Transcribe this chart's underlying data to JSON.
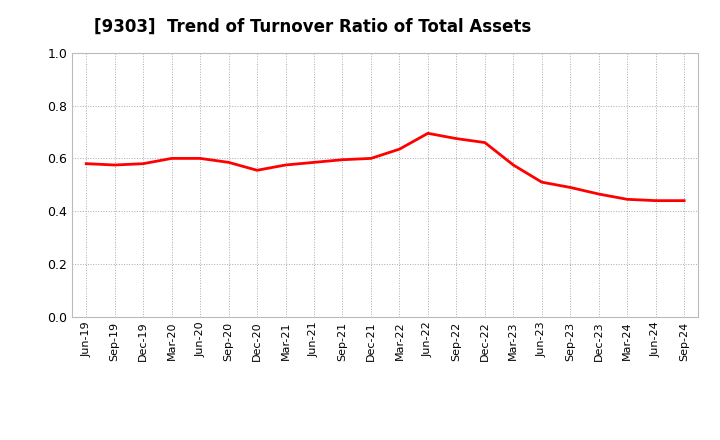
{
  "title": "[9303]  Trend of Turnover Ratio of Total Assets",
  "line_color": "#FF0000",
  "line_width": 2.0,
  "background_color": "#FFFFFF",
  "grid_color": "#AAAAAA",
  "ylim": [
    0.0,
    1.0
  ],
  "yticks": [
    0.0,
    0.2,
    0.4,
    0.6,
    0.8,
    1.0
  ],
  "x_labels": [
    "Jun-19",
    "Sep-19",
    "Dec-19",
    "Mar-20",
    "Jun-20",
    "Sep-20",
    "Dec-20",
    "Mar-21",
    "Jun-21",
    "Sep-21",
    "Dec-21",
    "Mar-22",
    "Jun-22",
    "Sep-22",
    "Dec-22",
    "Mar-23",
    "Jun-23",
    "Sep-23",
    "Dec-23",
    "Mar-24",
    "Jun-24",
    "Sep-24"
  ],
  "values": [
    0.58,
    0.575,
    0.58,
    0.6,
    0.6,
    0.585,
    0.555,
    0.575,
    0.585,
    0.595,
    0.6,
    0.635,
    0.695,
    0.675,
    0.66,
    0.575,
    0.51,
    0.49,
    0.465,
    0.445,
    0.44,
    0.44
  ]
}
